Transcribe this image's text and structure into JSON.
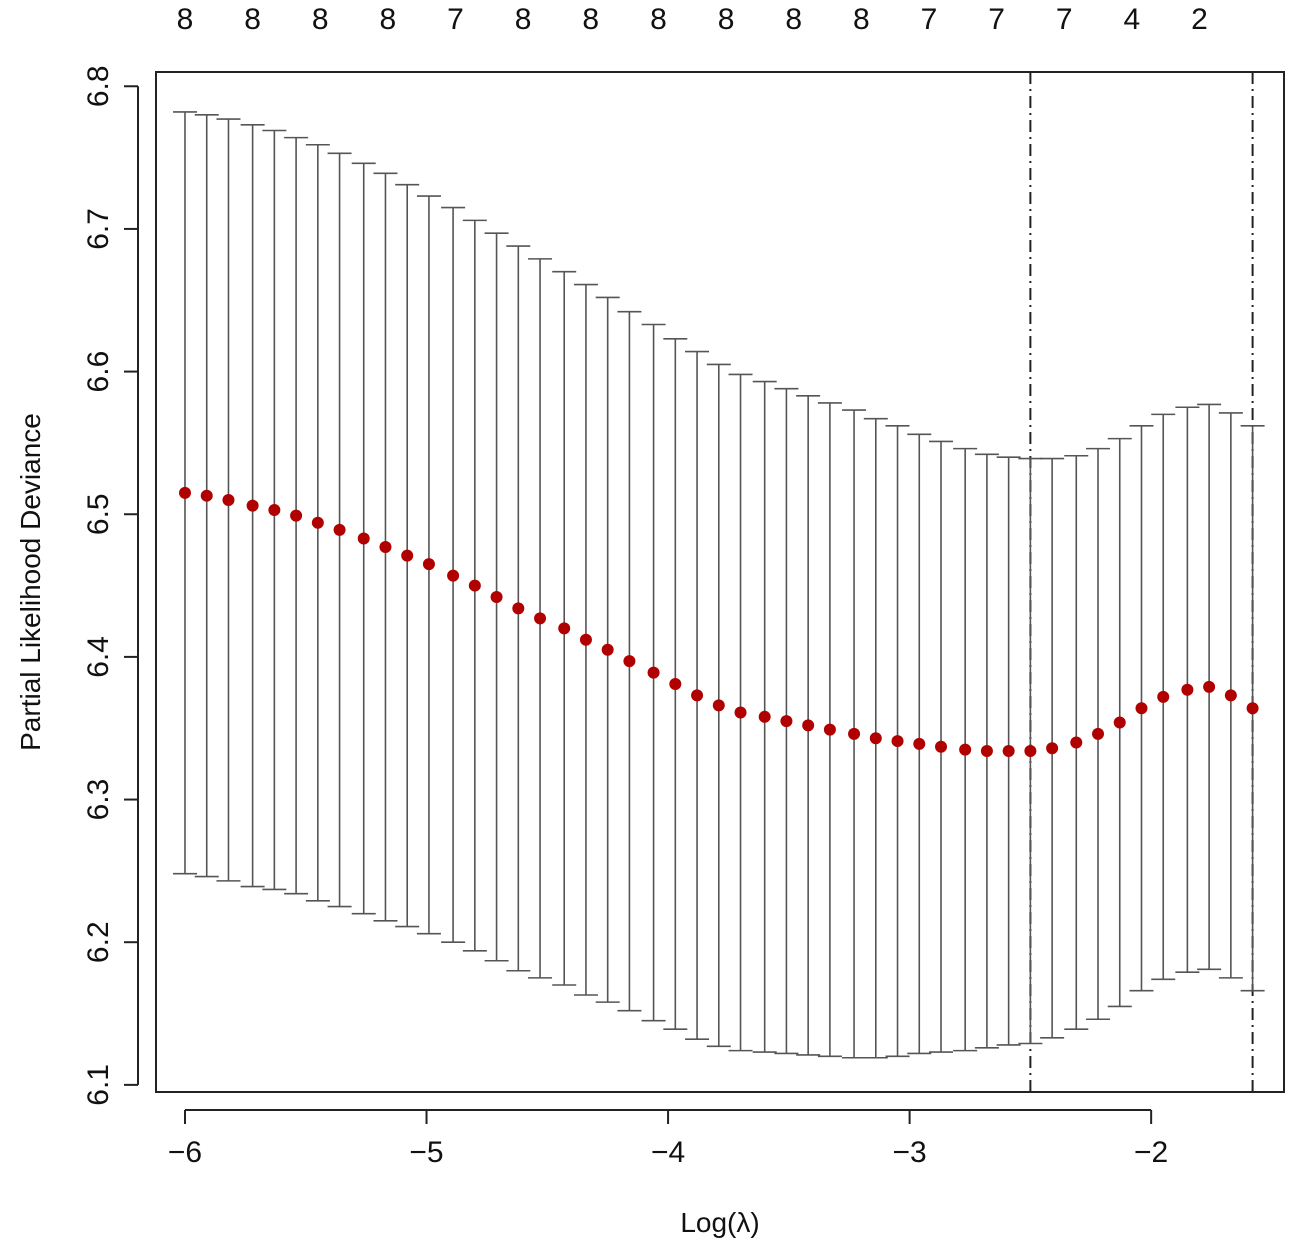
{
  "chart_data": {
    "type": "scatter",
    "title": "",
    "xlabel": "Log(λ)",
    "ylabel": "Partial Likelihood Deviance",
    "xlim": [
      -6.12,
      -1.45
    ],
    "ylim": [
      6.095,
      6.81
    ],
    "x_ticks": [
      -6,
      -5,
      -4,
      -3,
      -2
    ],
    "x_tick_labels": [
      "−6",
      "−5",
      "−4",
      "−3",
      "−2"
    ],
    "y_ticks": [
      6.1,
      6.2,
      6.3,
      6.4,
      6.5,
      6.6,
      6.7,
      6.8
    ],
    "y_tick_labels": [
      "6.1",
      "6.2",
      "6.3",
      "6.4",
      "6.5",
      "6.6",
      "6.7",
      "6.8"
    ],
    "top_axis": {
      "positions": [
        -6.0,
        -5.72,
        -5.44,
        -5.16,
        -4.88,
        -4.6,
        -4.32,
        -4.04,
        -3.76,
        -3.48,
        -3.2,
        -2.92,
        -2.64,
        -2.36,
        -2.08,
        -1.8
      ],
      "labels": [
        "8",
        "8",
        "8",
        "8",
        "7",
        "8",
        "8",
        "8",
        "8",
        "8",
        "8",
        "7",
        "7",
        "7",
        "4",
        "2"
      ]
    },
    "vlines": [
      -2.5,
      -1.58
    ],
    "point_color": "#b00000",
    "bar_color": "#555555",
    "series": [
      {
        "x": [
          -6.0,
          -5.91,
          -5.82,
          -5.72,
          -5.63,
          -5.54,
          -5.45,
          -5.36,
          -5.26,
          -5.17,
          -5.08,
          -4.99,
          -4.89,
          -4.8,
          -4.71,
          -4.62,
          -4.53,
          -4.43,
          -4.34,
          -4.25,
          -4.16,
          -4.06,
          -3.97,
          -3.88,
          -3.79,
          -3.7,
          -3.6,
          -3.51,
          -3.42,
          -3.33,
          -3.23,
          -3.14,
          -3.05,
          -2.96,
          -2.87,
          -2.77,
          -2.68,
          -2.59,
          -2.5,
          -2.41,
          -2.31,
          -2.22,
          -2.13,
          -2.04,
          -1.95,
          -1.85,
          -1.76,
          -1.67,
          -1.58
        ],
        "y": [
          6.515,
          6.513,
          6.51,
          6.506,
          6.503,
          6.499,
          6.494,
          6.489,
          6.483,
          6.477,
          6.471,
          6.465,
          6.457,
          6.45,
          6.442,
          6.434,
          6.427,
          6.42,
          6.412,
          6.405,
          6.397,
          6.389,
          6.381,
          6.373,
          6.366,
          6.361,
          6.358,
          6.355,
          6.352,
          6.349,
          6.346,
          6.343,
          6.341,
          6.339,
          6.337,
          6.335,
          6.334,
          6.334,
          6.334,
          6.336,
          6.34,
          6.346,
          6.354,
          6.364,
          6.372,
          6.377,
          6.379,
          6.373,
          6.364
        ],
        "upper": [
          6.782,
          6.78,
          6.777,
          6.773,
          6.769,
          6.764,
          6.759,
          6.753,
          6.746,
          6.739,
          6.731,
          6.723,
          6.715,
          6.706,
          6.697,
          6.688,
          6.679,
          6.67,
          6.661,
          6.652,
          6.642,
          6.633,
          6.623,
          6.614,
          6.605,
          6.598,
          6.593,
          6.588,
          6.583,
          6.578,
          6.573,
          6.567,
          6.562,
          6.556,
          6.551,
          6.546,
          6.542,
          6.54,
          6.539,
          6.539,
          6.541,
          6.546,
          6.553,
          6.562,
          6.57,
          6.575,
          6.577,
          6.571,
          6.562
        ],
        "lower": [
          6.248,
          6.246,
          6.243,
          6.239,
          6.237,
          6.234,
          6.229,
          6.225,
          6.22,
          6.215,
          6.211,
          6.206,
          6.2,
          6.194,
          6.187,
          6.18,
          6.175,
          6.17,
          6.163,
          6.158,
          6.152,
          6.145,
          6.139,
          6.132,
          6.127,
          6.124,
          6.123,
          6.122,
          6.121,
          6.12,
          6.119,
          6.119,
          6.12,
          6.122,
          6.123,
          6.124,
          6.126,
          6.128,
          6.129,
          6.133,
          6.139,
          6.146,
          6.155,
          6.166,
          6.174,
          6.179,
          6.181,
          6.175,
          6.166
        ]
      }
    ]
  }
}
